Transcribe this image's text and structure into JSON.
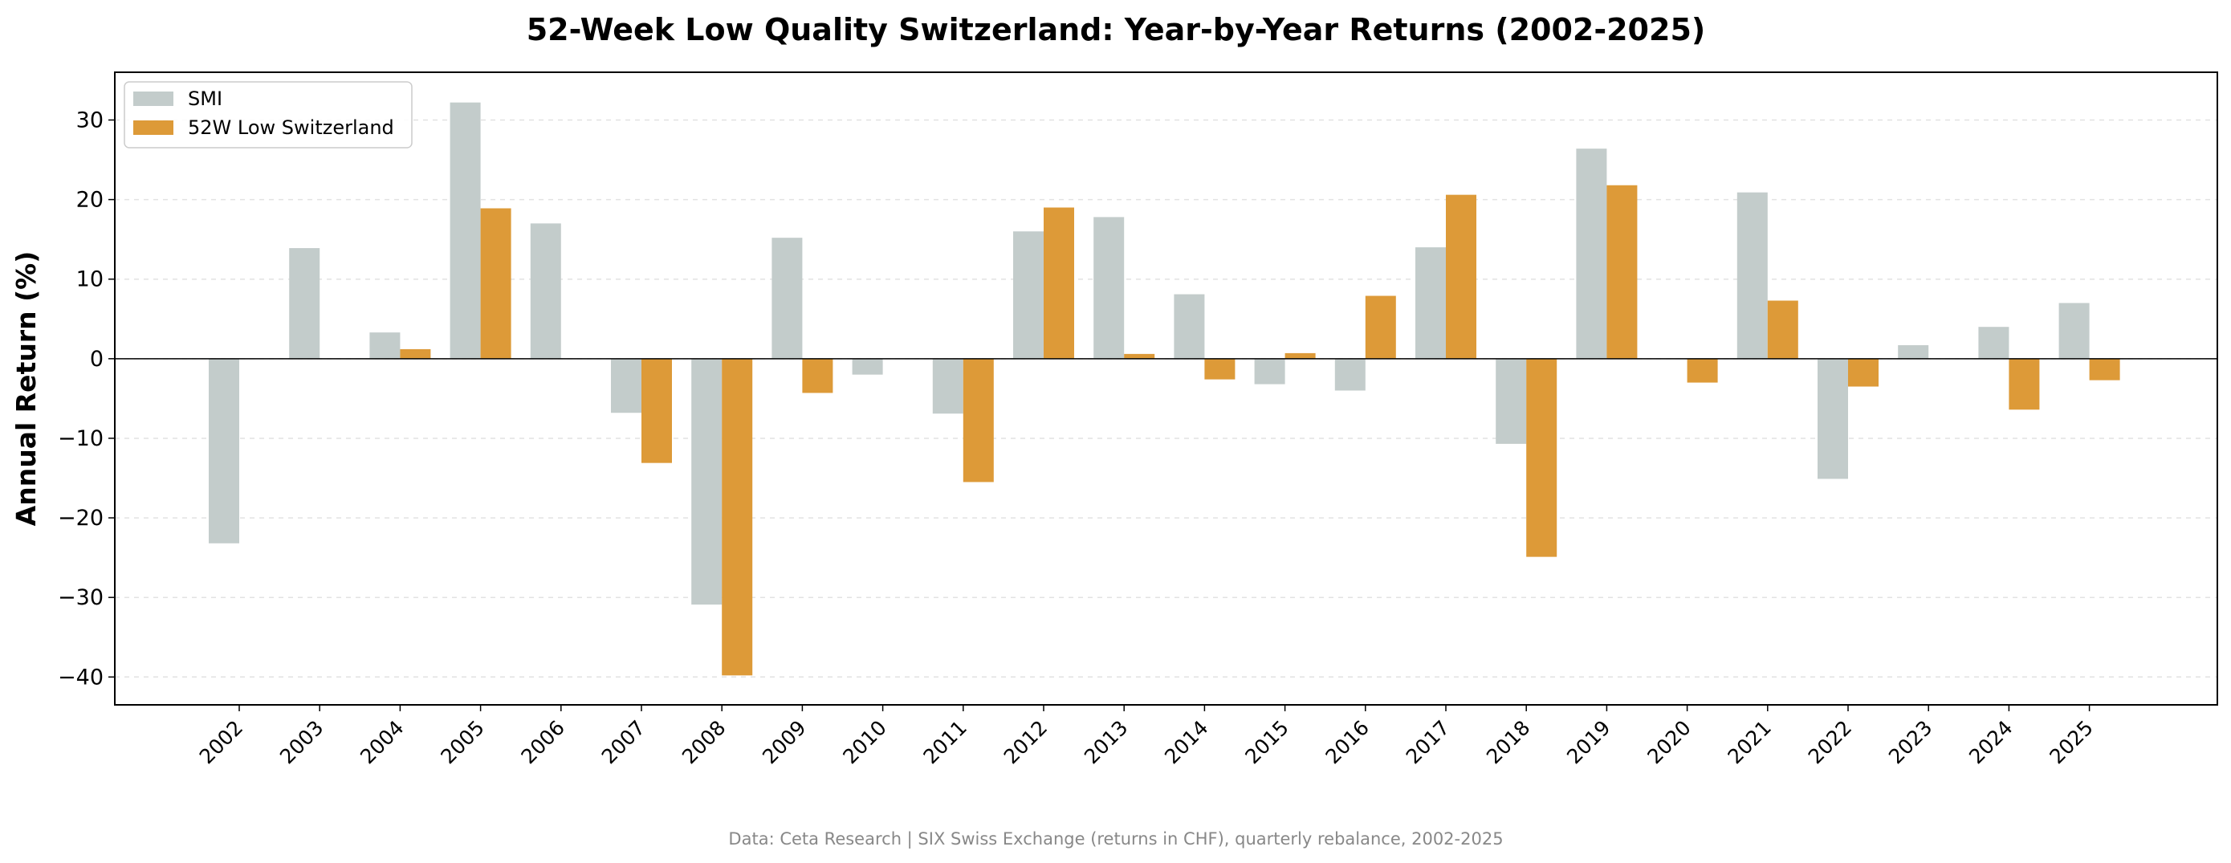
{
  "chart_data": {
    "type": "bar",
    "title": "52-Week Low Quality Switzerland: Year-by-Year Returns (2002-2025)",
    "ylabel": "Annual Return (%)",
    "xlabel": "",
    "ylim": [
      -43.5,
      36
    ],
    "yticks": [
      30,
      20,
      10,
      0,
      -10,
      -20,
      -30,
      -40
    ],
    "ytick_labels": [
      "30",
      "20",
      "10",
      "0",
      "−10",
      "−20",
      "−30",
      "−40"
    ],
    "grid": "horizontal dashed",
    "legend_position": "top-left",
    "categories": [
      "2002",
      "2003",
      "2004",
      "2005",
      "2006",
      "2007",
      "2008",
      "2009",
      "2010",
      "2011",
      "2012",
      "2013",
      "2014",
      "2015",
      "2016",
      "2017",
      "2018",
      "2019",
      "2020",
      "2021",
      "2022",
      "2023",
      "2024",
      "2025"
    ],
    "series": [
      {
        "name": "SMI",
        "color": "#c3cccb",
        "values": [
          -23.2,
          13.9,
          3.3,
          32.2,
          17.0,
          -6.8,
          -30.9,
          15.2,
          -2.0,
          -6.9,
          16.0,
          17.8,
          8.1,
          -3.2,
          -4.0,
          14.0,
          -10.7,
          26.4,
          null,
          20.9,
          -15.1,
          1.7,
          4.0,
          7.0
        ]
      },
      {
        "name": "52W Low Switzerland",
        "color": "#dd9a38",
        "values": [
          null,
          null,
          1.2,
          18.9,
          null,
          -13.1,
          -39.8,
          -4.3,
          null,
          -15.5,
          19.0,
          0.6,
          -2.6,
          0.7,
          7.9,
          20.6,
          -24.9,
          21.8,
          -3.0,
          7.3,
          -3.5,
          null,
          -6.4,
          -2.7
        ]
      }
    ],
    "footer": "Data: Ceta Research | SIX Swiss Exchange (returns in CHF), quarterly rebalance, 2002-2025"
  }
}
